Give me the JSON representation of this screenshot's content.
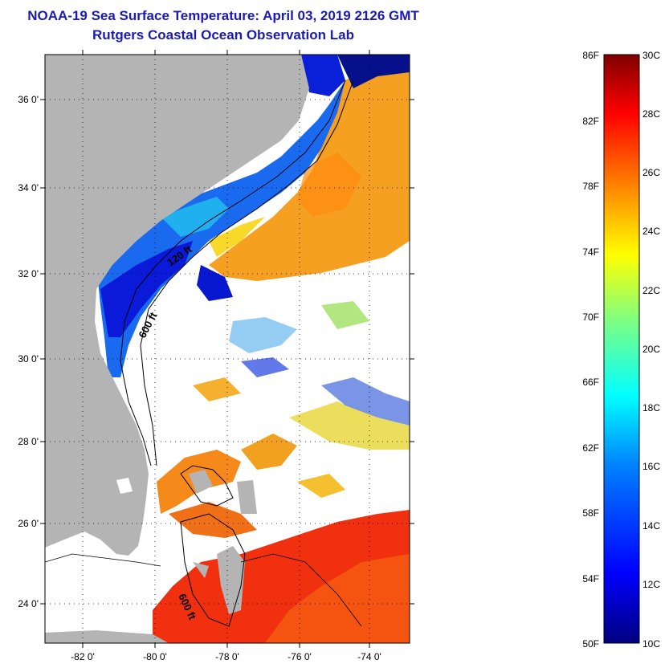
{
  "header": {
    "title": "NOAA-19 Sea Surface Temperature:  April 03, 2019 2126 GMT",
    "subtitle": "Rutgers Coastal Ocean Observation Lab"
  },
  "map": {
    "lat_labels": [
      "36 0'",
      "34 0'",
      "32 0'",
      "30 0'",
      "28 0'",
      "26 0'",
      "24 0'"
    ],
    "lon_labels": [
      "-82 0'",
      "-80 0'",
      "-78 0'",
      "-76 0'",
      "-74 0'"
    ],
    "contour_labels": [
      "120 ft",
      "600 ft",
      "600 ft"
    ],
    "colors": {
      "land": "#b4b4b4",
      "no_data": "#ffffff"
    }
  },
  "colorbar": {
    "f_labels": [
      "86F",
      "82F",
      "78F",
      "74F",
      "70F",
      "66F",
      "62F",
      "58F",
      "54F",
      "50F"
    ],
    "c_labels": [
      "30C",
      "28C",
      "26C",
      "24C",
      "22C",
      "20C",
      "18C",
      "16C",
      "14C",
      "12C",
      "10C"
    ],
    "stops": [
      "#00007f",
      "#0000ff",
      "#0080ff",
      "#00ffff",
      "#80ff80",
      "#ffff00",
      "#ff8000",
      "#ff0000",
      "#7f0000"
    ]
  }
}
